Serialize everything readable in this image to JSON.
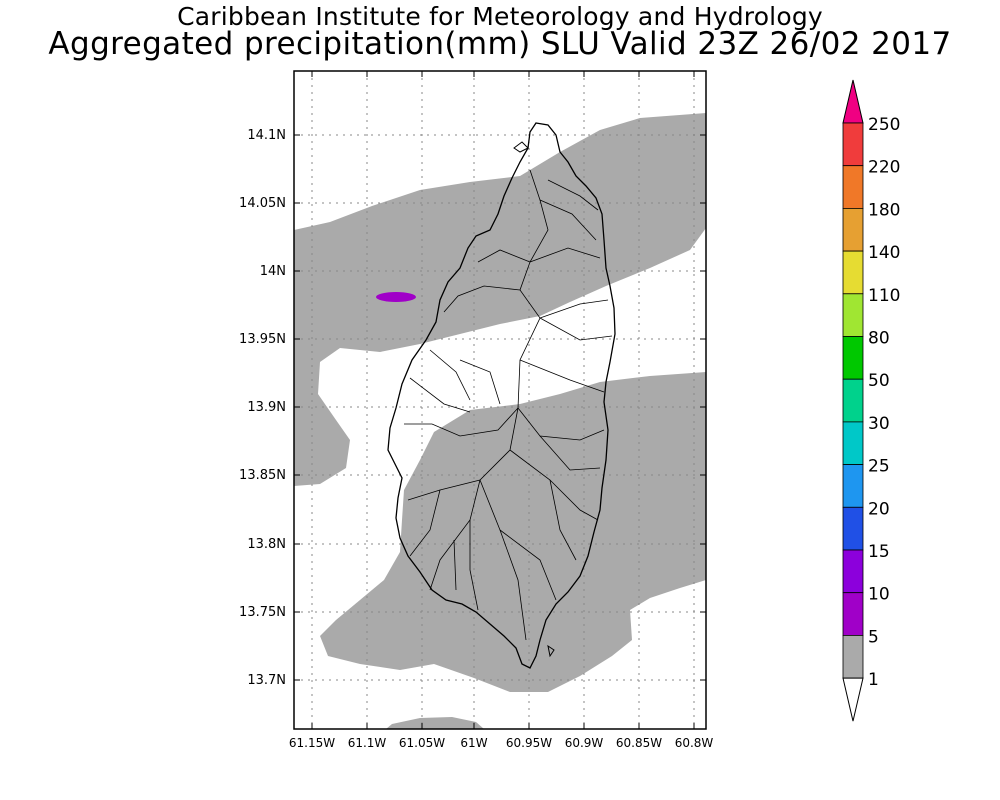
{
  "header": {
    "title_line1": "Caribbean Institute for Meteorology and Hydrology",
    "title_line2": "Aggregated precipitation(mm) SLU Valid 23Z 26/02 2017"
  },
  "map": {
    "x_ticks": [
      "61.15W",
      "61.1W",
      "61.05W",
      "61W",
      "60.95W",
      "60.9W",
      "60.85W",
      "60.8W"
    ],
    "y_ticks": [
      "14.1N",
      "14.05N",
      "14N",
      "13.95N",
      "13.9N",
      "13.85N",
      "13.8N",
      "13.75N",
      "13.7N"
    ],
    "grid": true,
    "precip_fill_color": "#aaaaaa",
    "max_cell_color": "#a000c8",
    "coast_color": "#000000"
  },
  "colorbar": {
    "labels": [
      "250",
      "220",
      "180",
      "140",
      "110",
      "80",
      "50",
      "30",
      "25",
      "20",
      "15",
      "10",
      "5",
      "1"
    ],
    "colors": [
      "#f00082",
      "#f03c3c",
      "#f07828",
      "#e6a032",
      "#e6dc32",
      "#a0e632",
      "#00c800",
      "#00d28c",
      "#00c8c8",
      "#1e96f0",
      "#2050e6",
      "#8c00dc",
      "#a000c8",
      "#aaaaaa",
      "#ffffff"
    ]
  }
}
